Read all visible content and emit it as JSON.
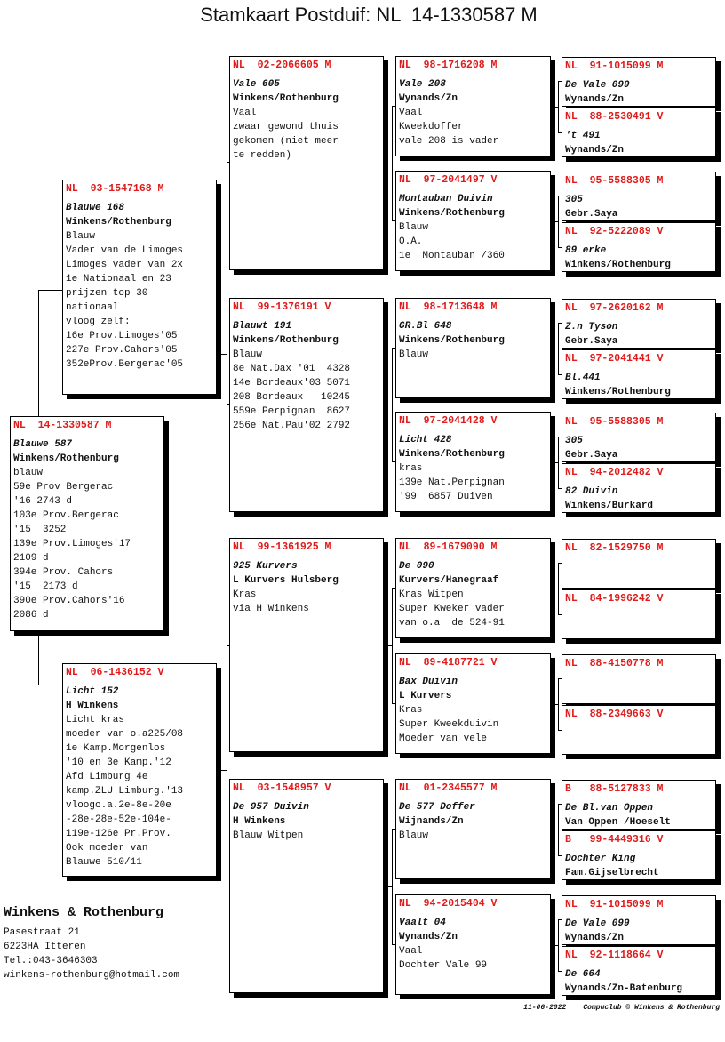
{
  "title": "Stamkaart Postduif: NL  14-1330587 M",
  "pedigree": {
    "subject": {
      "ring": "NL  14-1330587 M",
      "name": "Blauwe 587",
      "owner": "Winkens/Rothenburg",
      "lines": [
        "blauw",
        "59e Prov Bergerac",
        "'16 2743 d",
        "103e Prov.Bergerac",
        "'15  3252",
        "139e Prov.Limoges'17",
        "2109 d",
        "394e Prov. Cahors",
        "'15  2173 d",
        "390e Prov.Cahors'16",
        "2086 d"
      ]
    },
    "sire": {
      "ring": "NL  03-1547168 M",
      "name": "Blauwe 168",
      "owner": "Winkens/Rothenburg",
      "lines": [
        "Blauw",
        "Vader van de Limoges",
        "Limoges vader van 2x",
        "1e Nationaal en 23",
        "prijzen top 30",
        "nationaal",
        "vloog zelf:",
        "16e Prov.Limoges'05",
        "227e Prov.Cahors'05",
        "352eProv.Bergerac'05"
      ]
    },
    "dam": {
      "ring": "NL  06-1436152 V",
      "name": "Licht 152",
      "owner": "H Winkens",
      "lines": [
        "Licht kras",
        "moeder van o.a225/08",
        "1e Kamp.Morgenlos",
        "'10 en 3e Kamp.'12",
        "Afd Limburg 4e",
        "kamp.ZLU Limburg.'13",
        "vloogo.a.2e-8e-20e",
        "-28e-28e-52e-104e-",
        "119e-126e Pr.Prov.",
        "Ook moeder van",
        "Blauwe 510/11"
      ]
    },
    "gen2": [
      {
        "ring": "NL  02-2066605 M",
        "name": "Vale 605",
        "owner": "Winkens/Rothenburg",
        "lines": [
          "Vaal",
          "zwaar gewond thuis",
          "gekomen (niet meer",
          "te redden)"
        ]
      },
      {
        "ring": "NL  99-1376191 V",
        "name": "Blauwt 191",
        "owner": "Winkens/Rothenburg",
        "lines": [
          "Blauw",
          "8e Nat.Dax '01  4328",
          "14e Bordeaux'03 5071",
          "208 Bordeaux   10245",
          "559e Perpignan  8627",
          "256e Nat.Pau'02 2792"
        ]
      },
      {
        "ring": "NL  99-1361925 M",
        "name": "925 Kurvers",
        "owner": "L Kurvers Hulsberg",
        "lines": [
          "Kras",
          "via H Winkens"
        ]
      },
      {
        "ring": "NL  03-1548957 V",
        "name": "De 957 Duivin",
        "owner": "H Winkens",
        "lines": [
          "Blauw Witpen"
        ]
      }
    ],
    "gen3": [
      {
        "ring": "NL  98-1716208 M",
        "name": "Vale 208",
        "owner": "Wynands/Zn",
        "lines": [
          "Vaal",
          "Kweekdoffer",
          "vale 208 is vader"
        ]
      },
      {
        "ring": "NL  97-2041497 V",
        "name": "Montauban Duivin",
        "owner": "Winkens/Rothenburg",
        "lines": [
          "Blauw",
          "O.A.",
          "1e  Montauban /360"
        ]
      },
      {
        "ring": "NL  98-1713648 M",
        "name": "GR.Bl 648",
        "owner": "Winkens/Rothenburg",
        "lines": [
          "Blauw"
        ]
      },
      {
        "ring": "NL  97-2041428 V",
        "name": "Licht 428",
        "owner": "Winkens/Rothenburg",
        "lines": [
          "kras",
          "139e Nat.Perpignan",
          "'99  6857 Duiven"
        ]
      },
      {
        "ring": "NL  89-1679090 M",
        "name": "De 090",
        "owner": "Kurvers/Hanegraaf",
        "lines": [
          "Kras Witpen",
          "Super Kweker vader",
          "van o.a  de 524-91"
        ]
      },
      {
        "ring": "NL  89-4187721 V",
        "name": "Bax Duivin",
        "owner": "L Kurvers",
        "lines": [
          "Kras",
          "Super Kweekduivin",
          "Moeder van vele"
        ]
      },
      {
        "ring": "NL  01-2345577 M",
        "name": "De 577 Doffer",
        "owner": "Wijnands/Zn",
        "lines": [
          "Blauw"
        ]
      },
      {
        "ring": "NL  94-2015404 V",
        "name": "Vaalt 04",
        "owner": "Wynands/Zn",
        "lines": [
          "Vaal",
          "Dochter Vale 99"
        ]
      }
    ],
    "gen4": [
      {
        "ring": "NL  91-1015099 M",
        "name": "De Vale 099",
        "owner": "Wynands/Zn"
      },
      {
        "ring": "NL  88-2530491 V",
        "name": "'t 491",
        "owner": "Wynands/Zn"
      },
      {
        "ring": "NL  95-5588305 M",
        "name": "305",
        "owner": "Gebr.Saya"
      },
      {
        "ring": "NL  92-5222089 V",
        "name": "89 erke",
        "owner": "Winkens/Rothenburg"
      },
      {
        "ring": "NL  97-2620162 M",
        "name": "Z.n Tyson",
        "owner": "Gebr.Saya"
      },
      {
        "ring": "NL  97-2041441 V",
        "name": "Bl.441",
        "owner": "Winkens/Rothenburg"
      },
      {
        "ring": "NL  95-5588305 M",
        "name": "305",
        "owner": "Gebr.Saya"
      },
      {
        "ring": "NL  94-2012482 V",
        "name": "82 Duivin",
        "owner": "Winkens/Burkard"
      },
      {
        "ring": "NL  82-1529750 M",
        "name": "",
        "owner": ""
      },
      {
        "ring": "NL  84-1996242 V",
        "name": "",
        "owner": ""
      },
      {
        "ring": "NL  88-4150778 M",
        "name": "",
        "owner": ""
      },
      {
        "ring": "NL  88-2349663 V",
        "name": "",
        "owner": ""
      },
      {
        "ring": "B   88-5127833 M",
        "name": "De Bl.van Oppen",
        "owner": "Van Oppen /Hoeselt"
      },
      {
        "ring": "B   99-4449316 V",
        "name": "Dochter King",
        "owner": "Fam.Gijselbrecht"
      },
      {
        "ring": "NL  91-1015099 M",
        "name": "De Vale 099",
        "owner": "Wynands/Zn"
      },
      {
        "ring": "NL  92-1118664 V",
        "name": "De 664",
        "owner": "Wynands/Zn-Batenburg"
      }
    ]
  },
  "breeder": {
    "name": "Winkens & Rothenburg",
    "address": "Pasestraat 21",
    "city": "6223HA  Itteren",
    "phone": "Tel.:043-3646303",
    "email": "winkens-rothenburg@hotmail.com"
  },
  "footer": "11-06-2022    Compuclub © Winkens & Rothenburg",
  "colors": {
    "ring": "#e01b1b",
    "text": "#111111",
    "shadow": "#000000"
  }
}
